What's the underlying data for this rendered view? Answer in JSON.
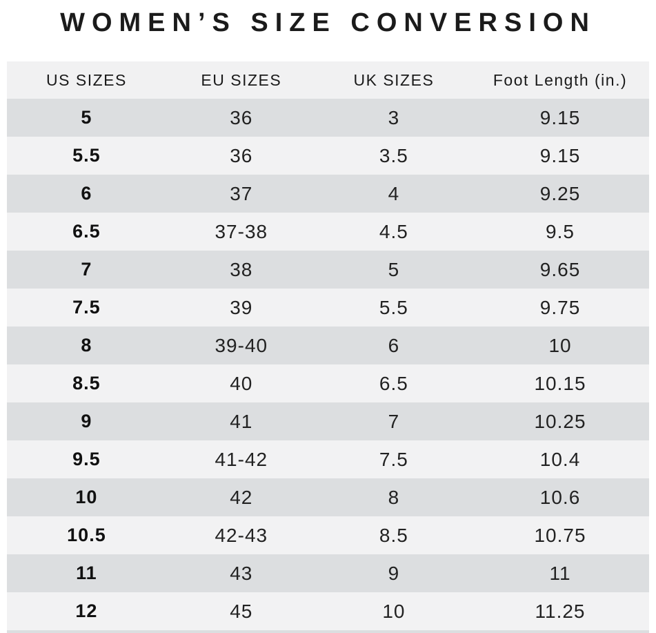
{
  "title": "WOMEN’S SIZE CONVERSION",
  "table": {
    "headers": [
      "US SIZES",
      "EU SIZES",
      "UK SIZES",
      "Foot Length (in.)"
    ],
    "rows": [
      [
        "5",
        "36",
        "3",
        "9.15"
      ],
      [
        "5.5",
        "36",
        "3.5",
        "9.15"
      ],
      [
        "6",
        "37",
        "4",
        "9.25"
      ],
      [
        "6.5",
        "37-38",
        "4.5",
        "9.5"
      ],
      [
        "7",
        "38",
        "5",
        "9.65"
      ],
      [
        "7.5",
        "39",
        "5.5",
        "9.75"
      ],
      [
        "8",
        "39-40",
        "6",
        "10"
      ],
      [
        "8.5",
        "40",
        "6.5",
        "10.15"
      ],
      [
        "9",
        "41",
        "7",
        "10.25"
      ],
      [
        "9.5",
        "41-42",
        "7.5",
        "10.4"
      ],
      [
        "10",
        "42",
        "8",
        "10.6"
      ],
      [
        "10.5",
        "42-43",
        "8.5",
        "10.75"
      ],
      [
        "11",
        "43",
        "9",
        "11"
      ],
      [
        "12",
        "45",
        "10",
        "11.25"
      ]
    ]
  },
  "colors": {
    "row_dark": "#dcdee0",
    "row_light": "#f2f2f3",
    "header_bg": "#f1f1f2",
    "text": "#222222",
    "title_text": "#1b1b1b",
    "page_bg": "#ffffff"
  },
  "chart_data": {
    "type": "table",
    "title": "WOMEN’S SIZE CONVERSION",
    "columns": [
      "US SIZES",
      "EU SIZES",
      "UK SIZES",
      "Foot Length (in.)"
    ],
    "rows": [
      [
        "5",
        "36",
        "3",
        "9.15"
      ],
      [
        "5.5",
        "36",
        "3.5",
        "9.15"
      ],
      [
        "6",
        "37",
        "4",
        "9.25"
      ],
      [
        "6.5",
        "37-38",
        "4.5",
        "9.5"
      ],
      [
        "7",
        "38",
        "5",
        "9.65"
      ],
      [
        "7.5",
        "39",
        "5.5",
        "9.75"
      ],
      [
        "8",
        "39-40",
        "6",
        "10"
      ],
      [
        "8.5",
        "40",
        "6.5",
        "10.15"
      ],
      [
        "9",
        "41",
        "7",
        "10.25"
      ],
      [
        "9.5",
        "41-42",
        "7.5",
        "10.4"
      ],
      [
        "10",
        "42",
        "8",
        "10.6"
      ],
      [
        "10.5",
        "42-43",
        "8.5",
        "10.75"
      ],
      [
        "11",
        "43",
        "9",
        "11"
      ],
      [
        "12",
        "45",
        "10",
        "11.25"
      ]
    ]
  }
}
